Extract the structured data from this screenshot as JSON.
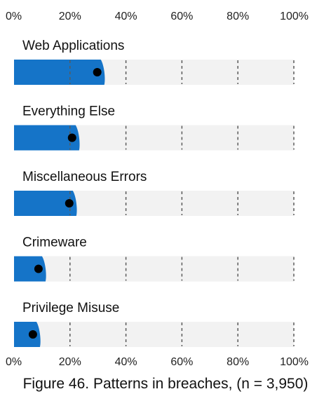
{
  "chart_data": {
    "type": "bar",
    "orientation": "horizontal",
    "categories": [
      "Web Applications",
      "Everything Else",
      "Miscellaneous Errors",
      "Crimeware",
      "Privilege Misuse"
    ],
    "values": [
      31,
      22,
      21,
      10,
      8
    ],
    "xlim": [
      0,
      100
    ],
    "ticks": [
      "0%",
      "20%",
      "40%",
      "60%",
      "80%",
      "100%"
    ],
    "tick_values": [
      0,
      20,
      40,
      60,
      80,
      100
    ],
    "grid": "dashed vertical",
    "bar_color": "#1574c8",
    "track_color": "#f2f2f2",
    "marker_color": "#000000",
    "caption": "Figure 46. Patterns in breaches, (n = 3,950)"
  }
}
